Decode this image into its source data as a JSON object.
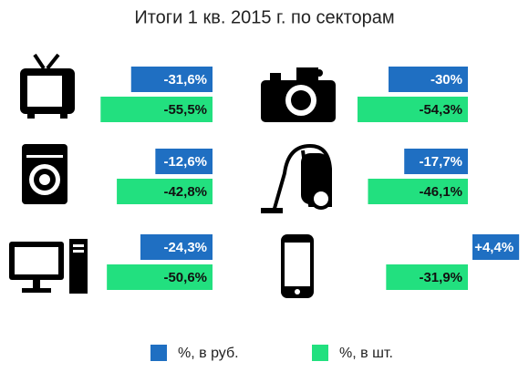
{
  "chart_data": {
    "type": "bar",
    "title": "Итоги 1 кв. 2015 г. по секторам",
    "series": [
      {
        "name": "%, в руб.",
        "color": "#1f6fc2",
        "values": [
          -31.6,
          -30,
          -12.6,
          -17.7,
          -24.3,
          4.4
        ],
        "value_labels": [
          "-31,6%",
          "-30%",
          "-12,6%",
          "-17,7%",
          "-24,3%",
          "+4,4%"
        ]
      },
      {
        "name": "%, в шт.",
        "color": "#22e07f",
        "values": [
          -55.5,
          -54.3,
          -42.8,
          -46.1,
          -50.6,
          -31.9
        ],
        "value_labels": [
          "-55,5%",
          "-54,3%",
          "-42,8%",
          "-46,1%",
          "-50,6%",
          "-31,9%"
        ]
      }
    ]
  }
}
